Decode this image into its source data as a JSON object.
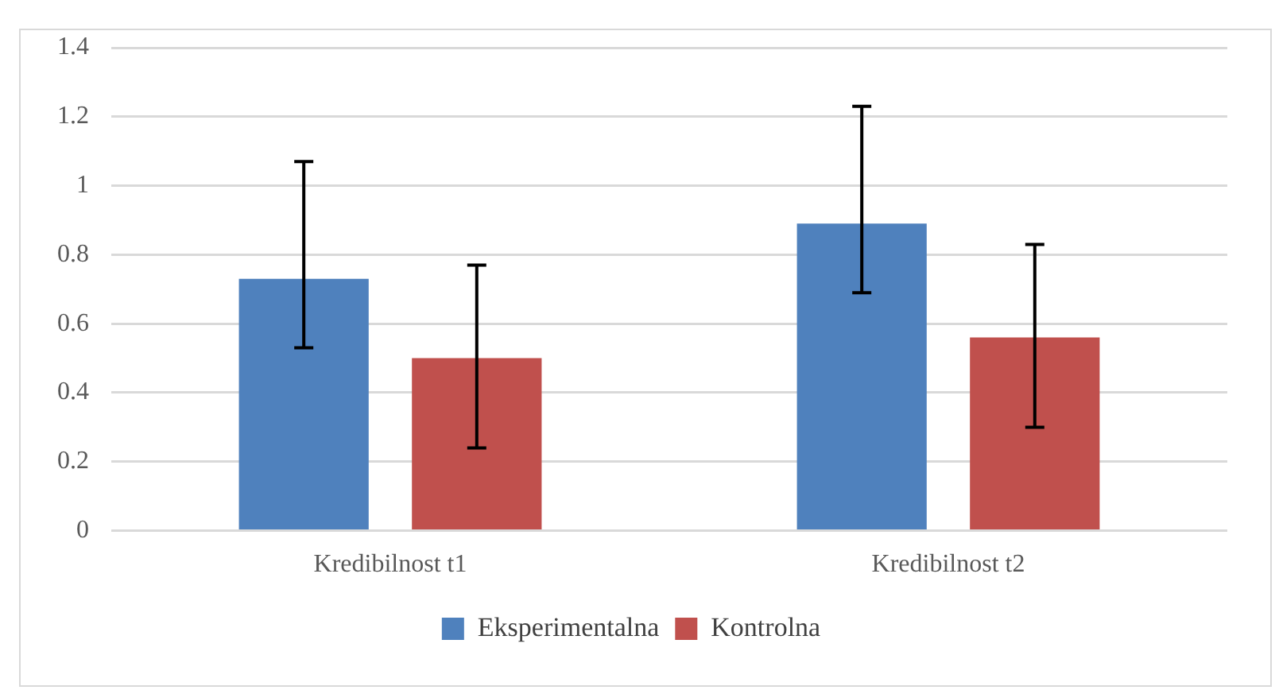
{
  "chart_data": {
    "type": "bar",
    "categories": [
      "Kredibilnost t1",
      "Kredibilnost t2"
    ],
    "series": [
      {
        "name": "Eksperimentalna",
        "color": "#4f81bd",
        "values": [
          0.73,
          0.89
        ],
        "errors": [
          [
            0.53,
            1.07
          ],
          [
            0.69,
            1.23
          ]
        ]
      },
      {
        "name": "Kontrolna",
        "color": "#c0504d",
        "values": [
          0.5,
          0.56
        ],
        "errors": [
          [
            0.24,
            0.77
          ],
          [
            0.3,
            0.83
          ]
        ]
      }
    ],
    "ylim": [
      0,
      1.4
    ],
    "yticks": [
      0,
      0.2,
      0.4,
      0.6,
      0.8,
      1,
      1.2,
      1.4
    ],
    "grid": "y",
    "legend": "bottom"
  }
}
